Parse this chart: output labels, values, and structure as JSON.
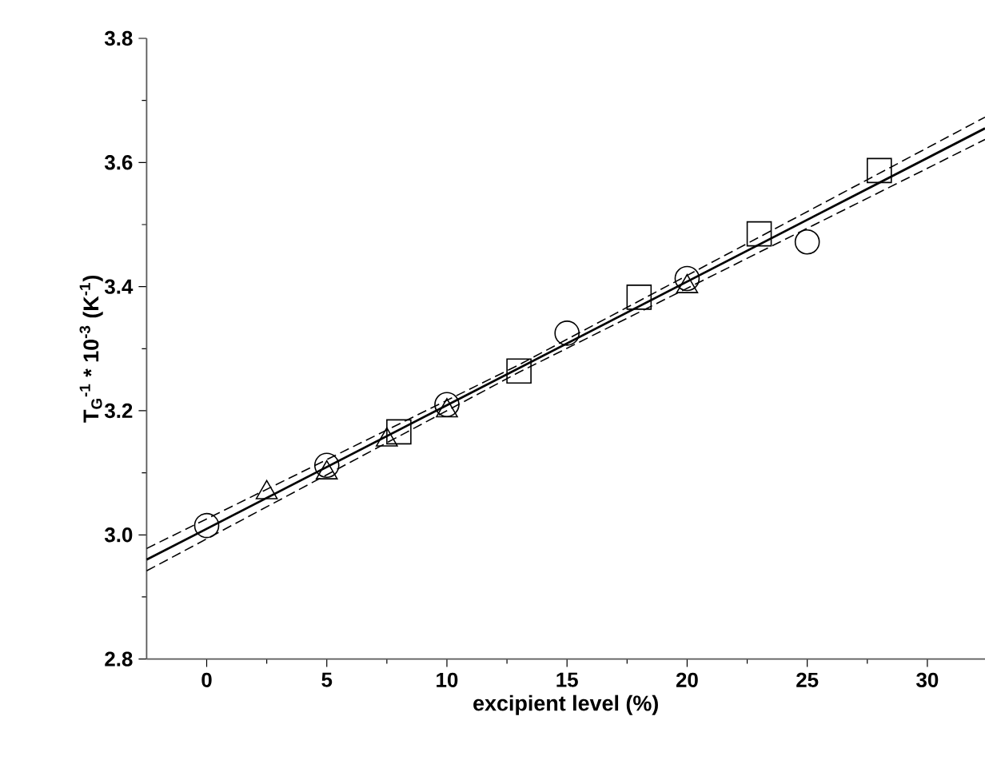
{
  "chart_data": {
    "type": "scatter",
    "xlabel": "excipient level (%)",
    "ylabel": "T$_{G}$$^{-1}$ * 10$^{-3}$ (K$^{-1}$)",
    "xlim": [
      -2.5,
      32.4
    ],
    "ylim": [
      2.8,
      3.8
    ],
    "xticks": [
      0,
      5,
      10,
      15,
      20,
      25,
      30
    ],
    "yticks": [
      {
        "value": 2.8,
        "label": "2.8"
      },
      {
        "value": 3.0,
        "label": "3.0"
      },
      {
        "value": 3.2,
        "label": "3.2"
      },
      {
        "value": 3.4,
        "label": "3.4"
      },
      {
        "value": 3.6,
        "label": "3.6"
      },
      {
        "value": 3.8,
        "label": "3.8"
      }
    ],
    "grid": false,
    "series": [
      {
        "marker": "circle",
        "color": "#000000",
        "x": [
          0,
          5,
          10,
          15,
          20,
          25
        ],
        "values": [
          3.015,
          3.112,
          3.21,
          3.325,
          3.413,
          3.472
        ]
      },
      {
        "marker": "triangle",
        "color": "#000000",
        "x": [
          2.5,
          5,
          7.5,
          10,
          20
        ],
        "values": [
          3.068,
          3.1,
          3.153,
          3.2,
          3.4
        ]
      },
      {
        "marker": "square",
        "color": "#000000",
        "x": [
          8,
          13,
          18,
          23,
          28
        ],
        "values": [
          3.166,
          3.264,
          3.383,
          3.485,
          3.587
        ]
      },
      {
        "type": "line",
        "marker": "none",
        "line_style": "solid",
        "color": "#000000",
        "x": [
          -2.5,
          32.4
        ],
        "values": [
          2.96,
          3.655
        ]
      },
      {
        "type": "line",
        "marker": "none",
        "line_style": "dashed",
        "color": "#000000",
        "x": [
          -2.5,
          13,
          32.4
        ],
        "values": [
          2.978,
          3.274,
          3.673
        ]
      },
      {
        "type": "line",
        "marker": "none",
        "line_style": "dashed",
        "color": "#000000",
        "x": [
          -2.5,
          13,
          32.4
        ],
        "values": [
          2.942,
          3.262,
          3.637
        ]
      }
    ]
  }
}
